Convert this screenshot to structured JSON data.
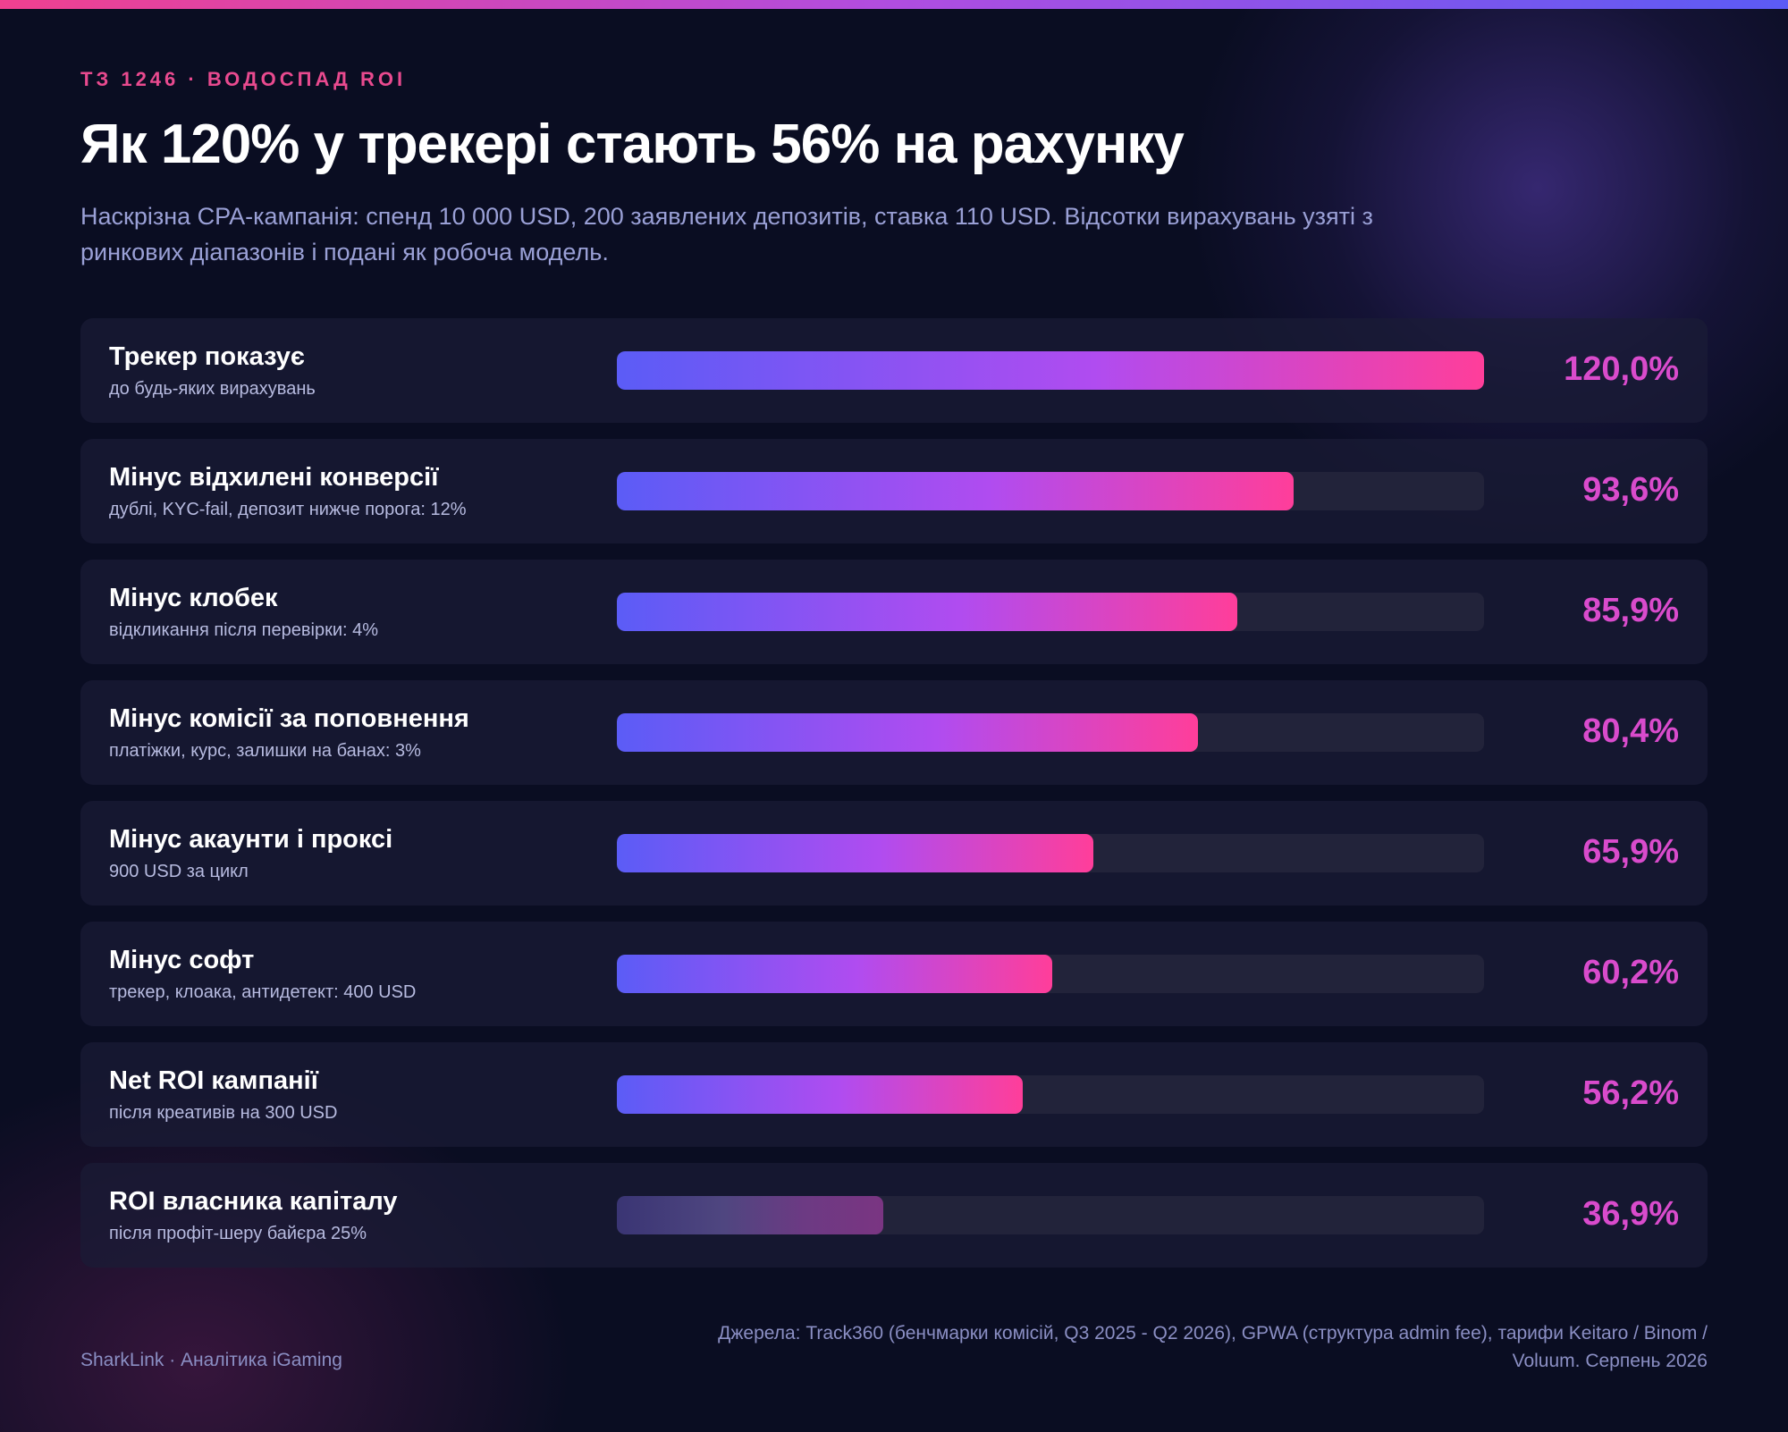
{
  "header": {
    "eyebrow": "ТЗ 1246 · ВОДОСПАД ROI",
    "title": "Як 120% у трекері стають 56% на рахунку",
    "subtitle": "Наскрізна CPA-кампанія: спенд 10 000 USD, 200 заявлених депозитів, ставка 110 USD. Відсотки вирахувань узяті з ринкових діапазонів і подані як робоча модель."
  },
  "chart_data": {
    "type": "bar",
    "orientation": "horizontal",
    "xlim": [
      0,
      120
    ],
    "unit": "%",
    "categories": [
      "Трекер показує",
      "Мінус відхилені конверсії",
      "Мінус клобек",
      "Мінус комісії за поповнення",
      "Мінус акаунти і проксі",
      "Мінус софт",
      "Net ROI кампанії",
      "ROI власника капіталу"
    ],
    "subtitles": [
      "до будь-яких вирахувань",
      "дублі, KYC-fail, депозит нижче порога: 12%",
      "відкликання після перевірки: 4%",
      "платіжки, курс, залишки на банах: 3%",
      "900 USD за цикл",
      "трекер, клоака, антидетект: 400 USD",
      "після креативів на 300 USD",
      "після профіт-шеру байєра 25%"
    ],
    "values": [
      120.0,
      93.6,
      85.9,
      80.4,
      65.9,
      60.2,
      56.2,
      36.9
    ],
    "value_labels": [
      "120,0%",
      "93,6%",
      "85,9%",
      "80,4%",
      "65,9%",
      "60,2%",
      "56,2%",
      "36,9%"
    ],
    "muted": [
      false,
      false,
      false,
      false,
      false,
      false,
      false,
      true
    ],
    "colors": {
      "gradient_start": "#5b5cf6",
      "gradient_mid": "#b04cf0",
      "gradient_end": "#ff3e9a",
      "value_text": "#d94bcc"
    }
  },
  "footer": {
    "brand": "SharkLink · Аналітика iGaming",
    "sources": "Джерела: Track360 (бенчмарки комісій, Q3 2025 - Q2 2026), GPWA (структура admin fee), тарифи Keitaro / Binom / Voluum. Серпень 2026"
  }
}
